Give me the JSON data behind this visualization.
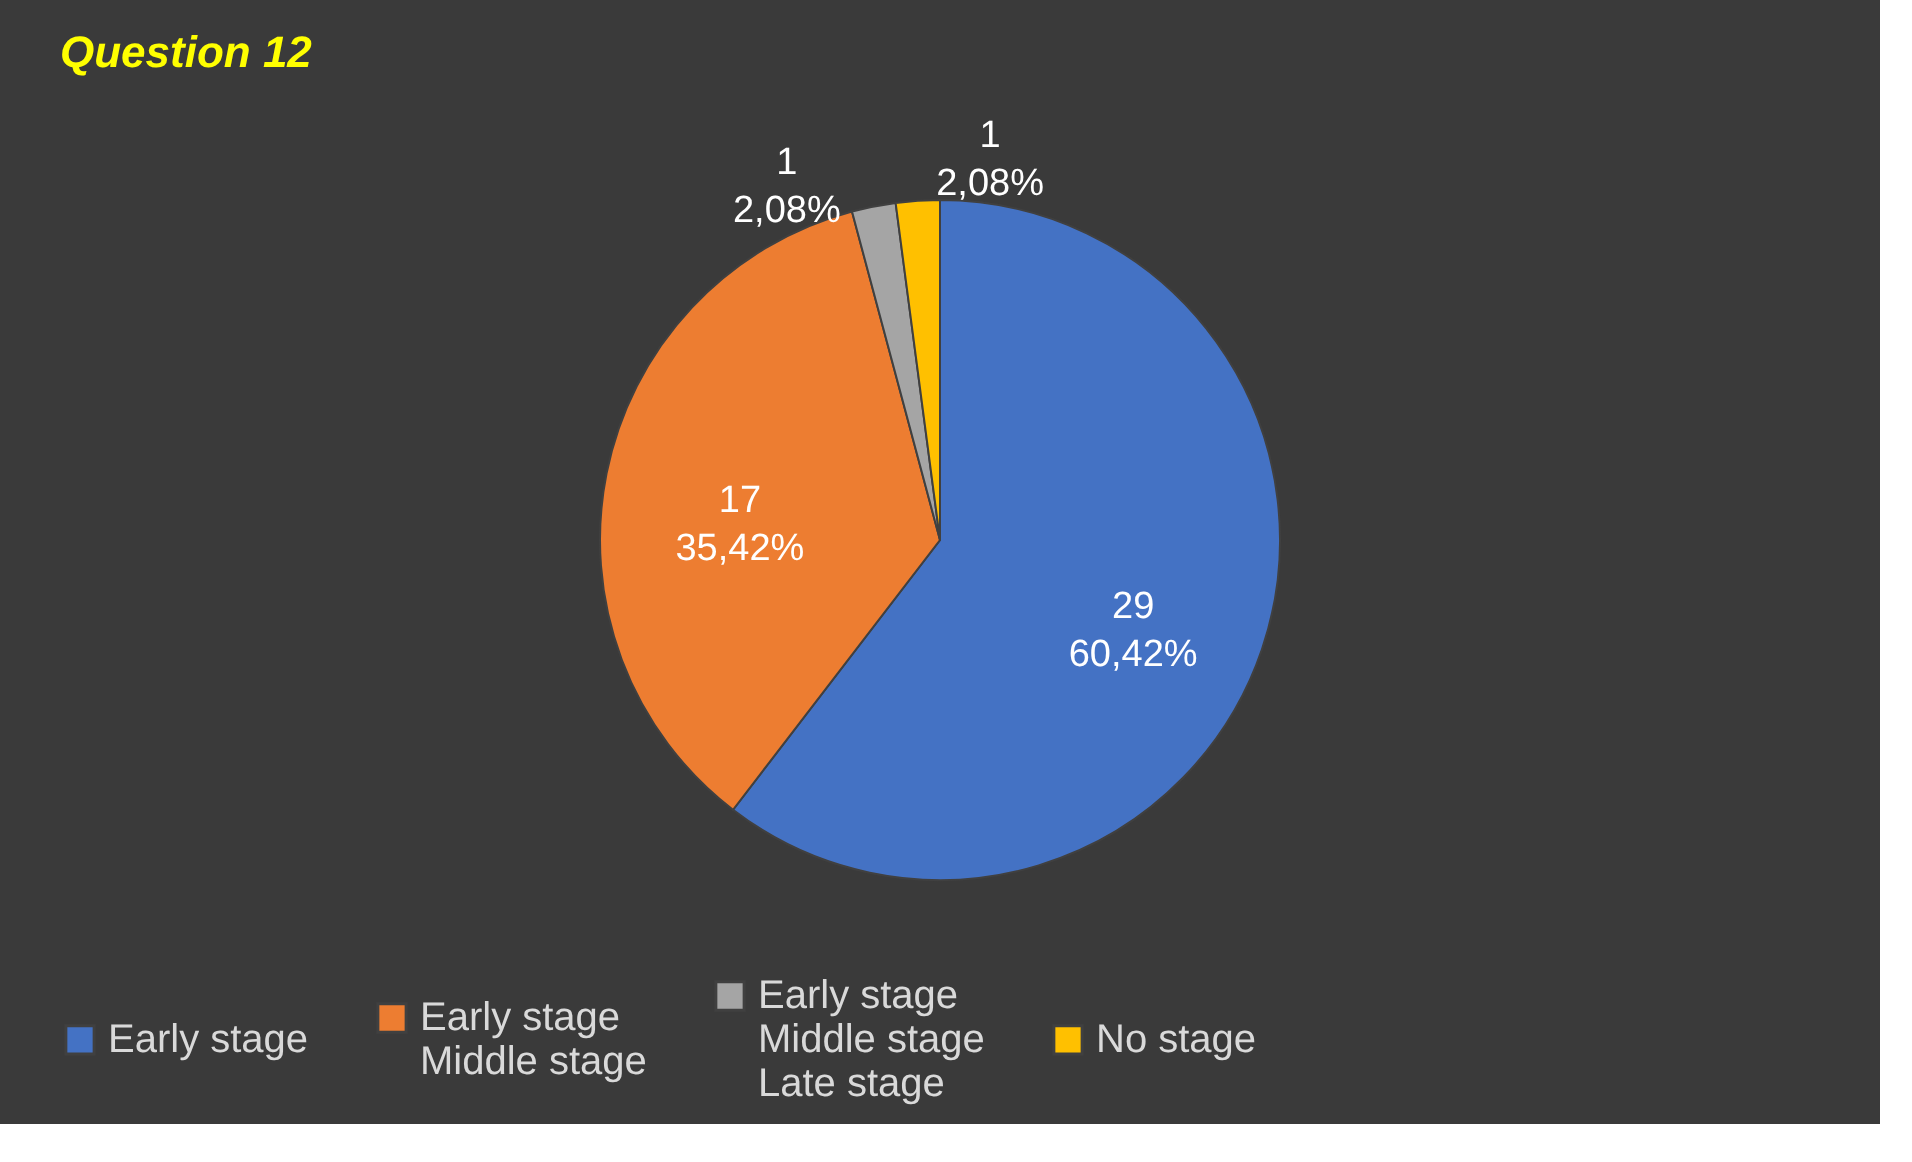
{
  "chart_data": {
    "type": "pie",
    "title": "Question 12",
    "categories": [
      "Early stage",
      "Early stage\nMiddle stage",
      "Early stage\nMiddle stage\nLate stage",
      "No stage"
    ],
    "values": [
      29,
      17,
      1,
      1
    ],
    "value_labels": [
      "29\n60,42%",
      "17\n35,42%",
      "1\n2,08%",
      "1\n2,08%"
    ],
    "colors": [
      "#4472c4",
      "#ed7d31",
      "#a5a5a5",
      "#ffc000"
    ],
    "legend": "bottom"
  }
}
